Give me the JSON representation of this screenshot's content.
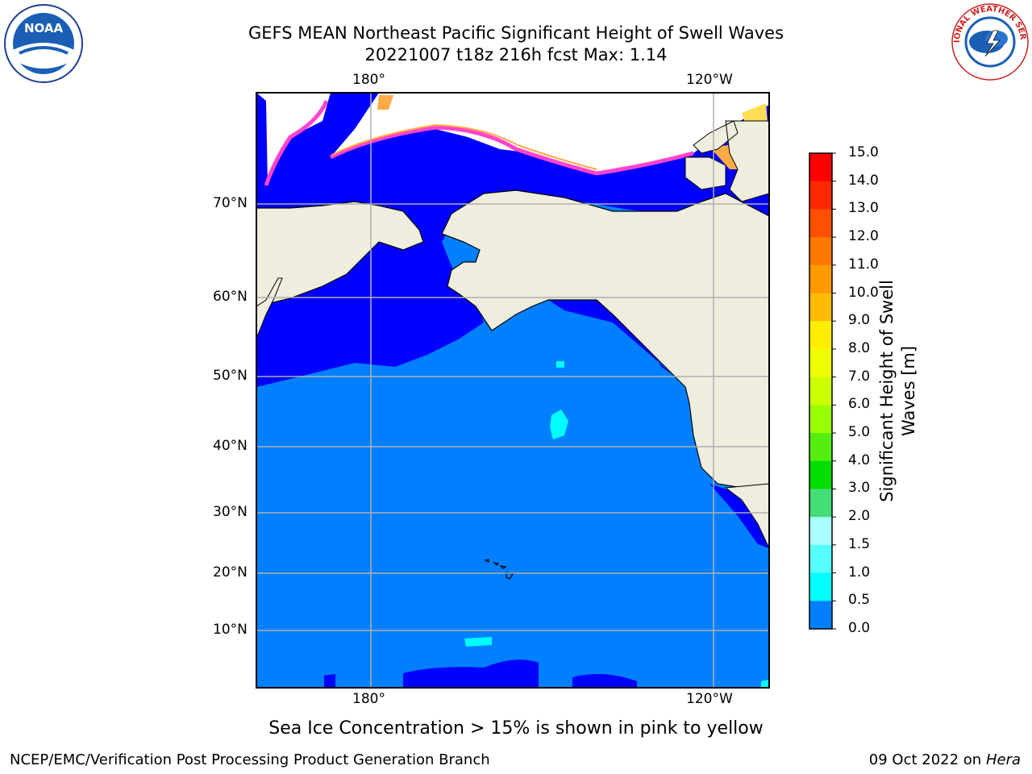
{
  "header": {
    "title_line1": "GEFS MEAN Northeast Pacific Significant Height of Swell Waves",
    "title_line2": "20221007 t18z 216h fcst   Max: 1.14"
  },
  "logos": {
    "left": "NOAA",
    "right": "NATIONAL WEATHER SERVICE"
  },
  "map": {
    "lon_labels": [
      "180°",
      "120°W"
    ],
    "lat_labels": [
      "70°N",
      "60°N",
      "50°N",
      "40°N",
      "30°N",
      "20°N",
      "10°N"
    ],
    "colors": {
      "ocean_low": "#0000ff",
      "ocean_main": "#0080ff",
      "land": "#eeedde",
      "grid": "#b0b0b0",
      "ice_pink": "#ff44cc",
      "ice_orange": "#ffaa44",
      "ice_yellow": "#ffdd55"
    }
  },
  "colorbar": {
    "label_line1": "Significant Height of Swell",
    "label_line2": "Waves [m]",
    "ticks": [
      "15.0",
      "14.0",
      "13.0",
      "12.0",
      "11.0",
      "10.0",
      "9.0",
      "8.0",
      "7.0",
      "6.0",
      "5.0",
      "4.0",
      "3.0",
      "2.0",
      "1.5",
      "1.0",
      "0.5",
      "0.0"
    ],
    "colors": [
      "#ff0000",
      "#ff2800",
      "#ff5000",
      "#ff7800",
      "#ff9900",
      "#ffbb00",
      "#ffee00",
      "#f0ff00",
      "#ccff00",
      "#99ff00",
      "#55ee11",
      "#00dd00",
      "#44dd77",
      "#aaffff",
      "#55ffff",
      "#00ffff",
      "#0080ff",
      "#0000ff"
    ]
  },
  "caption": "Sea Ice Concentration > 15% is shown in pink to yellow",
  "footer": {
    "left": "NCEP/EMC/Verification Post Processing Product Generation Branch",
    "right_date": "09 Oct 2022 on",
    "right_host": "Hera"
  }
}
